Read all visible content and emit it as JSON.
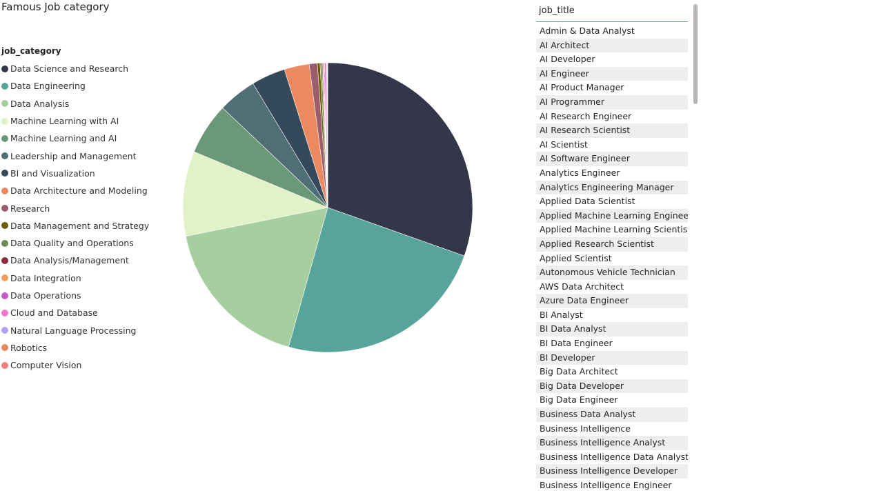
{
  "chart_data": {
    "type": "pie",
    "title": "Famous Job category",
    "legend_title": "job_category",
    "legend_position": "left",
    "categories": [
      "Data Science and Research",
      "Data Engineering",
      "Data Analysis",
      "Machine Learning with AI",
      "Machine Learning and AI",
      "Leadership and Management",
      "BI and Visualization",
      "Data Architecture and Modeling",
      "Research",
      "Data Management and Strategy",
      "Data Quality and Operations",
      "Data Analysis/Management",
      "Data Integration",
      "Data Operations",
      "Cloud and Database",
      "Natural Language Processing",
      "Robotics",
      "Computer Vision"
    ],
    "values": [
      30.5,
      24.0,
      17.5,
      9.5,
      5.8,
      4.3,
      3.8,
      2.8,
      0.9,
      0.3,
      0.2,
      0.1,
      0.1,
      0.1,
      0.2,
      0.05,
      0.05,
      0.05
    ],
    "colors": [
      "#343749",
      "#57A49A",
      "#A7CE9F",
      "#E2F2C8",
      "#6B9877",
      "#4F6E76",
      "#34495A",
      "#EB8A61",
      "#9B5C6C",
      "#6B5B00",
      "#6D8A4F",
      "#8E2A3A",
      "#F4A05A",
      "#C35BC4",
      "#F276CC",
      "#B4A0F4",
      "#E68766",
      "#F08080"
    ]
  },
  "slicer": {
    "header": "job_title",
    "items": [
      "Admin & Data Analyst",
      "AI Architect",
      "AI Developer",
      "AI Engineer",
      "AI Product Manager",
      "AI Programmer",
      "AI Research Engineer",
      "AI Research Scientist",
      "AI Scientist",
      "AI Software Engineer",
      "Analytics Engineer",
      "Analytics Engineering Manager",
      "Applied Data Scientist",
      "Applied Machine Learning Engineer",
      "Applied Machine Learning Scientist",
      "Applied Research Scientist",
      "Applied Scientist",
      "Autonomous Vehicle Technician",
      "AWS Data Architect",
      "Azure Data Engineer",
      "BI Analyst",
      "BI Data Analyst",
      "BI Data Engineer",
      "BI Developer",
      "Big Data Architect",
      "Big Data Developer",
      "Big Data Engineer",
      "Business Data Analyst",
      "Business Intelligence",
      "Business Intelligence Analyst",
      "Business Intelligence Data Analyst",
      "Business Intelligence Developer",
      "Business Intelligence Engineer"
    ]
  }
}
